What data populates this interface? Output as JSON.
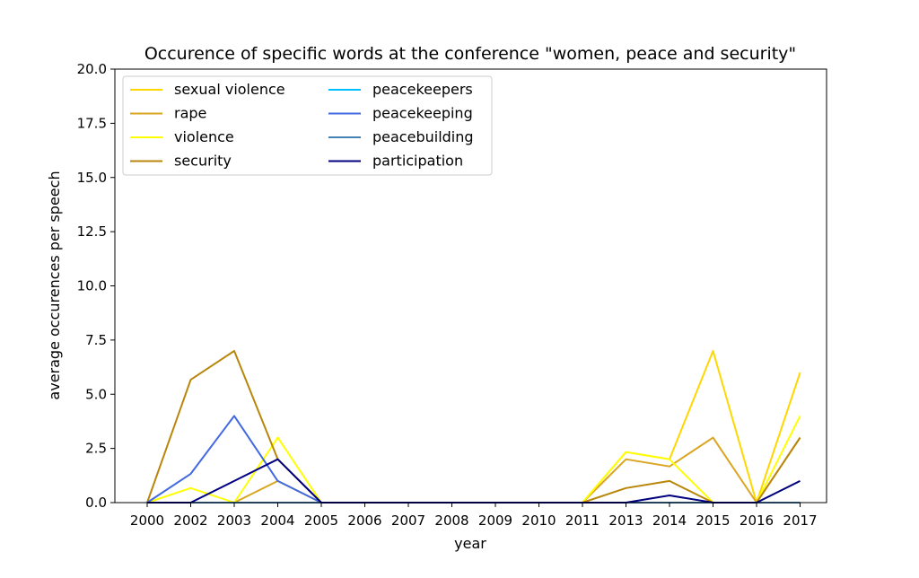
{
  "chart_data": {
    "type": "line",
    "title": "Occurence of specific words at the conference \"women, peace and security\"",
    "xlabel": "year",
    "ylabel": "average occurences per speech",
    "x": [
      "2000",
      "2002",
      "2003",
      "2004",
      "2005",
      "2006",
      "2007",
      "2008",
      "2009",
      "2010",
      "2011",
      "2013",
      "2014",
      "2015",
      "2016",
      "2017"
    ],
    "ylim": [
      0,
      20
    ],
    "yticks": [
      "0.0",
      "2.5",
      "5.0",
      "7.5",
      "10.0",
      "12.5",
      "15.0",
      "17.5",
      "20.0"
    ],
    "grid": false,
    "legend_position": "top-left",
    "series": [
      {
        "name": "sexual violence",
        "color": "#FFD700",
        "values": [
          0,
          0,
          0,
          0,
          0,
          0,
          0,
          0,
          0,
          0,
          0,
          2.33,
          2.0,
          7.0,
          0,
          6.0
        ]
      },
      {
        "name": "rape",
        "color": "#DAA520",
        "values": [
          0,
          0,
          0,
          1.0,
          0,
          0,
          0,
          0,
          0,
          0,
          0,
          2.0,
          1.67,
          3.0,
          0,
          3.0
        ]
      },
      {
        "name": "violence",
        "color": "#FFFF00",
        "values": [
          0,
          0.67,
          0,
          3.0,
          0,
          0,
          0,
          0,
          0,
          0,
          0,
          2.33,
          2.0,
          0,
          0,
          4.0
        ]
      },
      {
        "name": "security",
        "color": "#B8860B",
        "values": [
          0,
          5.67,
          7.0,
          2.0,
          0,
          0,
          0,
          0,
          0,
          0,
          0,
          0.67,
          1.0,
          0,
          0,
          3.0
        ]
      },
      {
        "name": "peacekeepers",
        "color": "#00BFFF",
        "values": [
          0,
          0,
          0,
          0,
          0,
          0,
          0,
          0,
          0,
          0,
          0,
          0,
          0,
          0,
          0,
          0
        ]
      },
      {
        "name": "peacekeeping",
        "color": "#4169E1",
        "values": [
          0,
          1.33,
          4.0,
          1.0,
          0,
          0,
          0,
          0,
          0,
          0,
          0,
          0,
          0,
          0,
          0,
          0
        ]
      },
      {
        "name": "peacebuilding",
        "color": "#4682B4",
        "values": [
          0,
          0,
          0,
          0,
          0,
          0,
          0,
          0,
          0,
          0,
          0,
          0,
          0,
          0,
          0,
          0
        ]
      },
      {
        "name": "participation",
        "color": "#000080",
        "values": [
          0,
          0,
          1.0,
          2.0,
          0,
          0,
          0,
          0,
          0,
          0,
          0,
          0,
          0.33,
          0,
          0,
          1.0
        ]
      }
    ]
  }
}
